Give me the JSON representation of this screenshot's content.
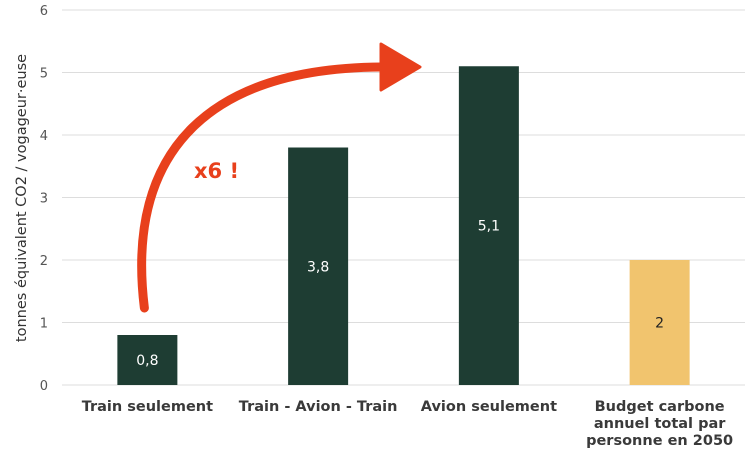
{
  "chart_data": {
    "type": "bar",
    "categories": [
      [
        "Train seulement"
      ],
      [
        "Train - Avion - Train"
      ],
      [
        "Avion seulement"
      ],
      [
        "Budget carbone",
        "annuel total par",
        "personne en 2050"
      ]
    ],
    "values": [
      0.8,
      3.8,
      5.1,
      2
    ],
    "data_labels": [
      "0,8",
      "3,8",
      "5,1",
      "2"
    ],
    "bar_colors": [
      "#1e3d33",
      "#1e3d33",
      "#1e3d33",
      "#f1c46e"
    ],
    "label_colors": [
      "#ffffff",
      "#ffffff",
      "#ffffff",
      "#222222"
    ],
    "ylabel": "tonnes équivalent CO2 / vogageur·euse",
    "ylim": [
      0,
      6
    ],
    "yticks": [
      "0",
      "1",
      "2",
      "3",
      "4",
      "5",
      "6"
    ],
    "grid": true,
    "annotation": {
      "text": "x6 !",
      "color": "#e8401c",
      "from_category": "Train seulement",
      "to_category": "Avion seulement"
    }
  }
}
